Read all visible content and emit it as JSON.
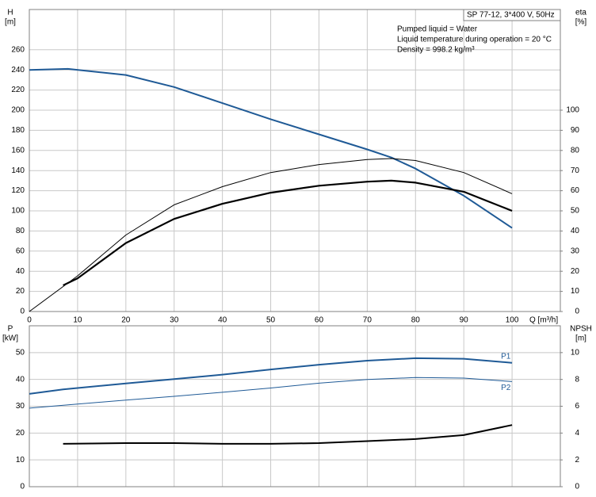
{
  "chart_data": [
    {
      "type": "line",
      "ylabel": "H",
      "yunit": "[m]",
      "y2label": "eta",
      "y2unit": "[%]",
      "xlabel": "Q [m³/h]",
      "info_box": "SP 77-12, 3*400 V, 50Hz",
      "info_lines": [
        "Pumped liquid = Water",
        "Liquid temperature during operation = 20 °C",
        "Density = 998.2 kg/m³"
      ],
      "xlim": [
        0,
        110
      ],
      "xticks": [
        0,
        10,
        20,
        30,
        40,
        50,
        60,
        70,
        80,
        90,
        100
      ],
      "xtick_labels": true,
      "ylim": [
        0,
        300
      ],
      "yticks": [
        0,
        20,
        40,
        60,
        80,
        100,
        120,
        140,
        160,
        180,
        200,
        220,
        240,
        260
      ],
      "y2lim": [
        0,
        150
      ],
      "y2ticks": [
        0,
        10,
        20,
        30,
        40,
        50,
        60,
        70,
        80,
        90,
        100
      ],
      "grid": true,
      "series": [
        {
          "color": "#1f5a96",
          "line_width": 2,
          "x": [
            0,
            8,
            20,
            30,
            40,
            50,
            60,
            70,
            75,
            80,
            90,
            100
          ],
          "values": [
            240,
            241,
            235,
            223,
            207,
            191,
            176,
            161,
            153,
            142,
            115,
            83
          ]
        },
        {
          "color": "#000000",
          "line_width": 1,
          "axis": "y2",
          "x": [
            0,
            10,
            20,
            30,
            40,
            50,
            60,
            70,
            75,
            80,
            90,
            100
          ],
          "values": [
            0,
            17.7,
            38,
            53,
            62,
            69,
            73,
            75.5,
            76,
            75,
            69,
            58.5
          ]
        },
        {
          "color": "#000000",
          "line_width": 2.2,
          "axis": "y2",
          "x": [
            7,
            10,
            20,
            30,
            40,
            50,
            60,
            70,
            75,
            80,
            90,
            100
          ],
          "values": [
            13,
            16.5,
            34,
            46,
            53.5,
            59,
            62.5,
            64.5,
            65,
            64,
            59.5,
            50
          ]
        }
      ]
    },
    {
      "type": "line",
      "ylabel": "P",
      "yunit": "[kW]",
      "y2label": "NPSH",
      "y2unit": "[m]",
      "xlim": [
        0,
        110
      ],
      "xticks": [
        0,
        10,
        20,
        30,
        40,
        50,
        60,
        70,
        80,
        90,
        100
      ],
      "xtick_labels": false,
      "ylim": [
        0,
        60
      ],
      "yticks": [
        0,
        10,
        20,
        30,
        40,
        50
      ],
      "y2lim": [
        0,
        12
      ],
      "y2ticks": [
        0,
        2,
        4,
        6,
        8,
        10
      ],
      "grid": true,
      "series": [
        {
          "name": "P1",
          "color": "#1f5a96",
          "line_width": 2,
          "x": [
            0,
            7,
            20,
            30,
            40,
            50,
            60,
            70,
            80,
            90,
            100
          ],
          "values": [
            34.6,
            36.3,
            38.5,
            40.1,
            41.8,
            43.7,
            45.5,
            47,
            47.9,
            47.7,
            46.2
          ]
        },
        {
          "name": "P2",
          "color": "#1f5a96",
          "line_width": 1,
          "x": [
            0,
            10,
            20,
            30,
            40,
            50,
            60,
            70,
            80,
            90,
            100
          ],
          "values": [
            29.3,
            30.8,
            32.3,
            33.7,
            35.2,
            36.8,
            38.6,
            40,
            40.7,
            40.5,
            39.2
          ]
        },
        {
          "color": "#000000",
          "line_width": 2,
          "axis": "y2",
          "x": [
            7,
            20,
            30,
            40,
            50,
            60,
            70,
            80,
            90,
            100
          ],
          "values": [
            3.2,
            3.25,
            3.25,
            3.2,
            3.2,
            3.25,
            3.4,
            3.55,
            3.85,
            4.6
          ]
        }
      ]
    }
  ]
}
